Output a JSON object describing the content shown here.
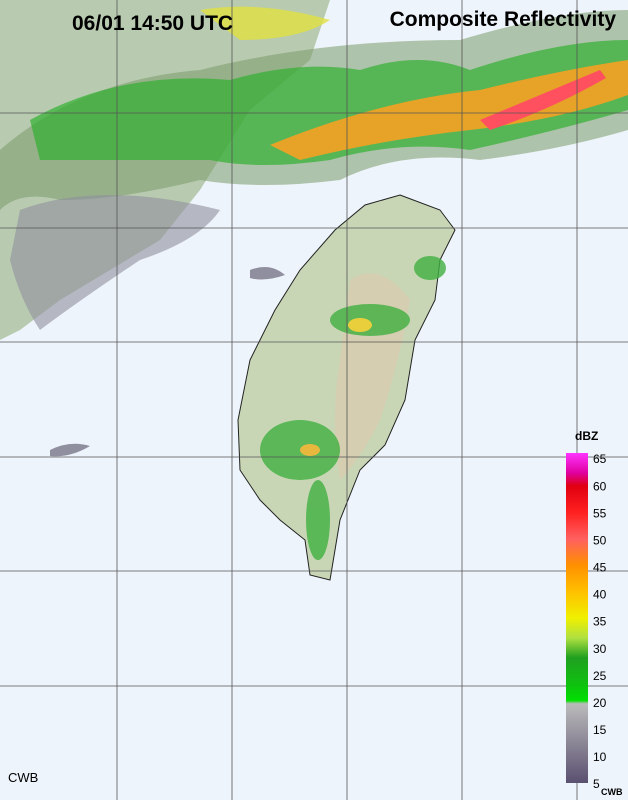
{
  "header": {
    "time": "06/01 14:50 UTC",
    "title": "Composite Reflectivity"
  },
  "colorbar": {
    "unit": "dBZ",
    "ticks": [
      65,
      60,
      55,
      50,
      45,
      40,
      35,
      30,
      25,
      20,
      15,
      10,
      5
    ]
  },
  "footer": {
    "left": "CWB",
    "right": "CWB"
  }
}
